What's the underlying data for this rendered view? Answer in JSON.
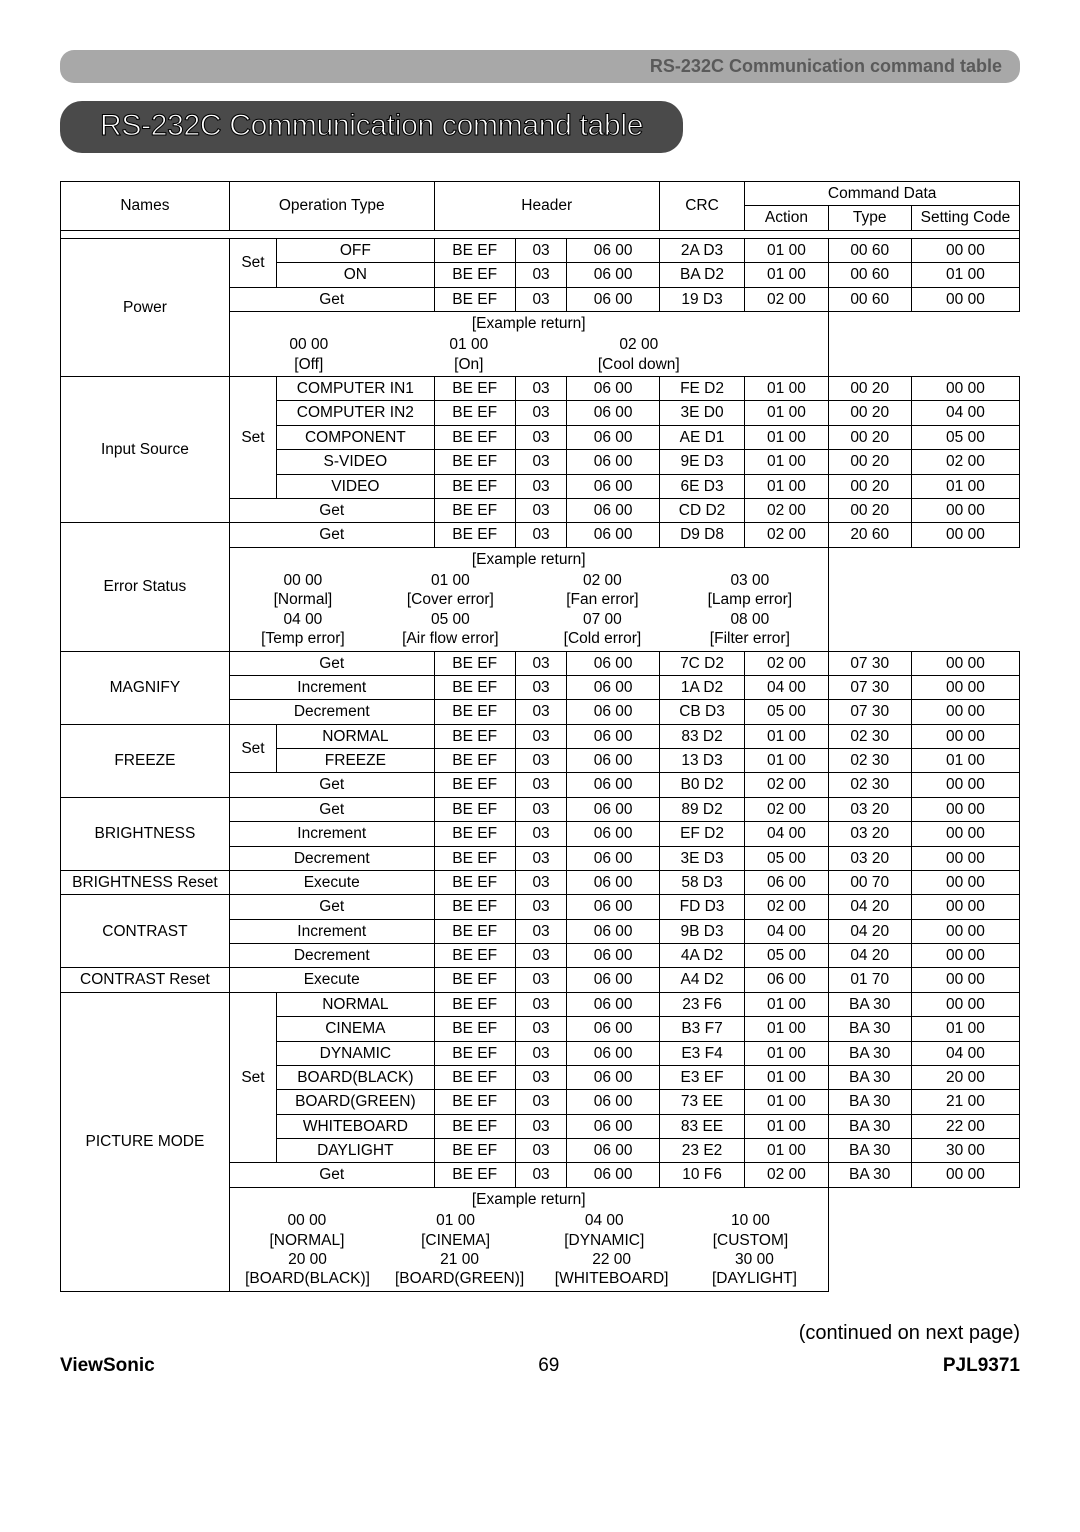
{
  "header_bar": "RS-232C Communication command table",
  "title": "RS-232C Communication command table",
  "headers": {
    "names": "Names",
    "operation_type": "Operation Type",
    "header": "Header",
    "crc": "CRC",
    "command_data": "Command Data",
    "action": "Action",
    "type": "Type",
    "setting_code": "Setting Code"
  },
  "rows": [
    {
      "name": "Power",
      "name_span": 4,
      "set": "Set",
      "set_span": 2,
      "op": "OFF",
      "h1": "BE  EF",
      "h2": "03",
      "h3": "06  00",
      "crc": "2A  D3",
      "act": "01  00",
      "typ": "00  60",
      "cod": "00  00"
    },
    {
      "op": "ON",
      "h1": "BE  EF",
      "h2": "03",
      "h3": "06  00",
      "crc": "BA  D2",
      "act": "01  00",
      "typ": "00  60",
      "cod": "01  00"
    },
    {
      "op": "Get",
      "op_full": true,
      "h1": "BE  EF",
      "h2": "03",
      "h3": "06  00",
      "crc": "19  D3",
      "act": "02  00",
      "typ": "00  60",
      "cod": "00  00"
    },
    {
      "example": true,
      "label": "[Example return]",
      "cols": [
        {
          "v": "00  00",
          "l": "[Off]"
        },
        {
          "v": "01  00",
          "l": "[On]"
        },
        {
          "v": "02  00",
          "l": "[Cool down]"
        }
      ],
      "widths": [
        150,
        170,
        170
      ]
    },
    {
      "name": "Input Source",
      "name_span": 6,
      "set": "Set",
      "set_span": 5,
      "op": "COMPUTER IN1",
      "h1": "BE  EF",
      "h2": "03",
      "h3": "06  00",
      "crc": "FE  D2",
      "act": "01  00",
      "typ": "00  20",
      "cod": "00  00"
    },
    {
      "op": "COMPUTER IN2",
      "h1": "BE  EF",
      "h2": "03",
      "h3": "06  00",
      "crc": "3E  D0",
      "act": "01  00",
      "typ": "00  20",
      "cod": "04  00"
    },
    {
      "op": "COMPONENT",
      "h1": "BE  EF",
      "h2": "03",
      "h3": "06  00",
      "crc": "AE  D1",
      "act": "01  00",
      "typ": "00  20",
      "cod": "05  00"
    },
    {
      "op": "S-VIDEO",
      "h1": "BE  EF",
      "h2": "03",
      "h3": "06  00",
      "crc": "9E  D3",
      "act": "01  00",
      "typ": "00  20",
      "cod": "02  00"
    },
    {
      "op": "VIDEO",
      "h1": "BE  EF",
      "h2": "03",
      "h3": "06  00",
      "crc": "6E  D3",
      "act": "01  00",
      "typ": "00  20",
      "cod": "01  00"
    },
    {
      "op": "Get",
      "op_full": true,
      "h1": "BE  EF",
      "h2": "03",
      "h3": "06  00",
      "crc": "CD  D2",
      "act": "02  00",
      "typ": "00  20",
      "cod": "00  00"
    },
    {
      "name": "Error Status",
      "name_span": 2,
      "op": "Get",
      "op_full": true,
      "h1": "BE  EF",
      "h2": "03",
      "h3": "06  00",
      "crc": "D9  D8",
      "act": "02  00",
      "typ": "20  60",
      "cod": "00  00"
    },
    {
      "example": true,
      "label": "[Example return]",
      "cols": [
        {
          "v": "00  00",
          "l": "[Normal]"
        },
        {
          "v": "01  00",
          "l": "[Cover error]"
        },
        {
          "v": "02  00",
          "l": "[Fan error]"
        },
        {
          "v": "03  00",
          "l": "[Lamp error]"
        }
      ],
      "widths": [
        150,
        170,
        160,
        160
      ],
      "cols2": [
        {
          "v": "04  00",
          "l": "[Temp error]"
        },
        {
          "v": "05  00",
          "l": "[Air flow error]"
        },
        {
          "v": "07  00",
          "l": "[Cold error]"
        },
        {
          "v": "08  00",
          "l": "[Filter error]"
        }
      ]
    },
    {
      "name": "MAGNIFY",
      "name_span": 3,
      "op": "Get",
      "op_full": true,
      "h1": "BE  EF",
      "h2": "03",
      "h3": "06  00",
      "crc": "7C  D2",
      "act": "02  00",
      "typ": "07  30",
      "cod": "00  00"
    },
    {
      "op": "Increment",
      "op_full": true,
      "h1": "BE  EF",
      "h2": "03",
      "h3": "06  00",
      "crc": "1A  D2",
      "act": "04  00",
      "typ": "07  30",
      "cod": "00  00"
    },
    {
      "op": "Decrement",
      "op_full": true,
      "h1": "BE  EF",
      "h2": "03",
      "h3": "06  00",
      "crc": "CB  D3",
      "act": "05  00",
      "typ": "07  30",
      "cod": "00  00"
    },
    {
      "name": "FREEZE",
      "name_span": 3,
      "set": "Set",
      "set_span": 2,
      "op": "NORMAL",
      "h1": "BE  EF",
      "h2": "03",
      "h3": "06  00",
      "crc": "83  D2",
      "act": "01  00",
      "typ": "02  30",
      "cod": "00  00"
    },
    {
      "op": "FREEZE",
      "h1": "BE  EF",
      "h2": "03",
      "h3": "06  00",
      "crc": "13  D3",
      "act": "01  00",
      "typ": "02  30",
      "cod": "01  00"
    },
    {
      "op": "Get",
      "op_full": true,
      "h1": "BE  EF",
      "h2": "03",
      "h3": "06  00",
      "crc": "B0  D2",
      "act": "02  00",
      "typ": "02  30",
      "cod": "00  00"
    },
    {
      "name": "BRIGHTNESS",
      "name_span": 3,
      "op": "Get",
      "op_full": true,
      "h1": "BE  EF",
      "h2": "03",
      "h3": "06  00",
      "crc": "89  D2",
      "act": "02  00",
      "typ": "03  20",
      "cod": "00  00"
    },
    {
      "op": "Increment",
      "op_full": true,
      "h1": "BE  EF",
      "h2": "03",
      "h3": "06  00",
      "crc": "EF  D2",
      "act": "04  00",
      "typ": "03  20",
      "cod": "00  00"
    },
    {
      "op": "Decrement",
      "op_full": true,
      "h1": "BE  EF",
      "h2": "03",
      "h3": "06  00",
      "crc": "3E  D3",
      "act": "05  00",
      "typ": "03  20",
      "cod": "00  00"
    },
    {
      "name": "BRIGHTNESS Reset",
      "name_span": 1,
      "op": "Execute",
      "op_full": true,
      "h1": "BE  EF",
      "h2": "03",
      "h3": "06  00",
      "crc": "58  D3",
      "act": "06  00",
      "typ": "00  70",
      "cod": "00  00"
    },
    {
      "name": "CONTRAST",
      "name_span": 3,
      "op": "Get",
      "op_full": true,
      "h1": "BE  EF",
      "h2": "03",
      "h3": "06  00",
      "crc": "FD  D3",
      "act": "02  00",
      "typ": "04  20",
      "cod": "00  00"
    },
    {
      "op": "Increment",
      "op_full": true,
      "h1": "BE  EF",
      "h2": "03",
      "h3": "06  00",
      "crc": "9B  D3",
      "act": "04  00",
      "typ": "04  20",
      "cod": "00  00"
    },
    {
      "op": "Decrement",
      "op_full": true,
      "h1": "BE  EF",
      "h2": "03",
      "h3": "06  00",
      "crc": "4A  D2",
      "act": "05  00",
      "typ": "04  20",
      "cod": "00  00"
    },
    {
      "name": "CONTRAST Reset",
      "name_span": 1,
      "op": "Execute",
      "op_full": true,
      "h1": "BE  EF",
      "h2": "03",
      "h3": "06  00",
      "crc": "A4  D2",
      "act": "06  00",
      "typ": "01  70",
      "cod": "00  00"
    },
    {
      "name": "PICTURE MODE",
      "name_span": 9,
      "set": "Set",
      "set_span": 7,
      "op": "NORMAL",
      "h1": "BE  EF",
      "h2": "03",
      "h3": "06  00",
      "crc": "23  F6",
      "act": "01  00",
      "typ": "BA  30",
      "cod": "00  00"
    },
    {
      "op": "CINEMA",
      "h1": "BE  EF",
      "h2": "03",
      "h3": "06  00",
      "crc": "B3  F7",
      "act": "01  00",
      "typ": "BA  30",
      "cod": "01  00"
    },
    {
      "op": "DYNAMIC",
      "h1": "BE  EF",
      "h2": "03",
      "h3": "06  00",
      "crc": "E3  F4",
      "act": "01  00",
      "typ": "BA  30",
      "cod": "04  00"
    },
    {
      "op": "BOARD(BLACK)",
      "h1": "BE  EF",
      "h2": "03",
      "h3": "06  00",
      "crc": "E3  EF",
      "act": "01  00",
      "typ": "BA  30",
      "cod": "20  00"
    },
    {
      "op": "BOARD(GREEN)",
      "h1": "BE  EF",
      "h2": "03",
      "h3": "06  00",
      "crc": "73  EE",
      "act": "01  00",
      "typ": "BA  30",
      "cod": "21  00"
    },
    {
      "op": "WHITEBOARD",
      "h1": "BE  EF",
      "h2": "03",
      "h3": "06  00",
      "crc": "83  EE",
      "act": "01  00",
      "typ": "BA  30",
      "cod": "22  00"
    },
    {
      "op": "DAYLIGHT",
      "h1": "BE  EF",
      "h2": "03",
      "h3": "06  00",
      "crc": "23  E2",
      "act": "01  00",
      "typ": "BA  30",
      "cod": "30  00"
    },
    {
      "op": "Get",
      "op_full": true,
      "h1": "BE  EF",
      "h2": "03",
      "h3": "06  00",
      "crc": "10  F6",
      "act": "02  00",
      "typ": "BA  30",
      "cod": "00  00"
    },
    {
      "example": true,
      "label": "[Example return]",
      "cols": [
        {
          "v": "00  00",
          "l": "[NORMAL]"
        },
        {
          "v": "01  00",
          "l": "[CINEMA]"
        },
        {
          "v": "04  00",
          "l": "[DYNAMIC]"
        },
        {
          "v": "10  00",
          "l": "[CUSTOM]"
        }
      ],
      "widths": [
        150,
        155,
        150,
        150
      ],
      "cols2": [
        {
          "v": "20  00",
          "l": "[BOARD(BLACK)]"
        },
        {
          "v": "21  00",
          "l": "[BOARD(GREEN)]"
        },
        {
          "v": "22  00",
          "l": "[WHITEBOARD]"
        },
        {
          "v": "30  00",
          "l": "[DAYLIGHT]"
        }
      ],
      "widths2": [
        160,
        170,
        160,
        150
      ]
    }
  ],
  "continued": "(continued on next page)",
  "footer": {
    "left": "ViewSonic",
    "page": "69",
    "right": "PJL9371"
  }
}
